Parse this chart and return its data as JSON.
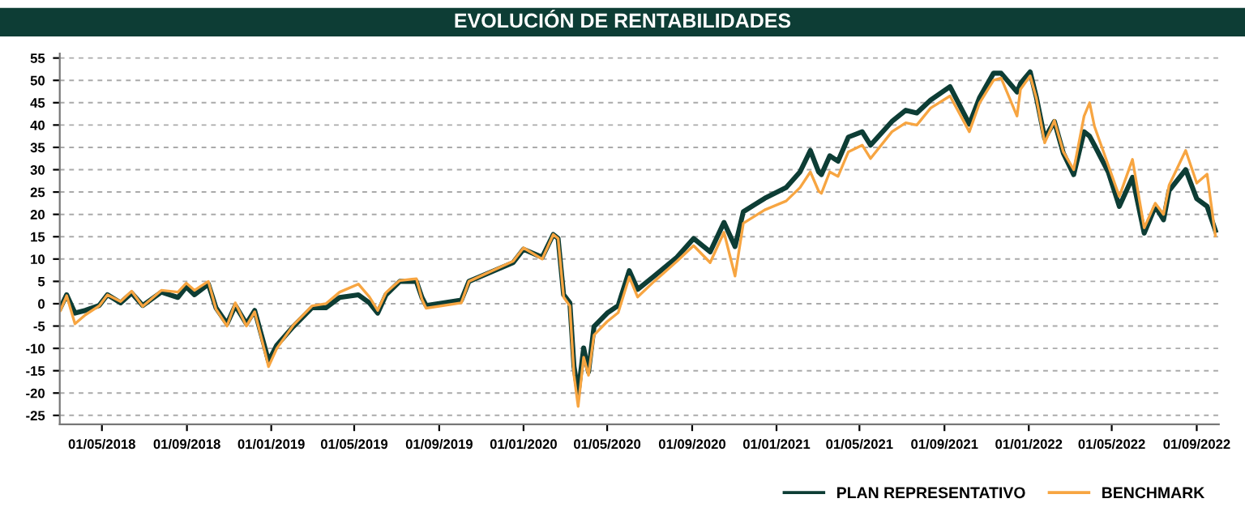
{
  "chart_data": {
    "type": "line",
    "title": "EVOLUCIÓN DE RENTABILIDADES",
    "x": [
      "2018-03-02",
      "2018-03-11",
      "2018-03-23",
      "2018-04-07",
      "2018-04-27",
      "2018-05-09",
      "2018-05-28",
      "2018-06-13",
      "2018-06-29",
      "2018-07-26",
      "2018-08-19",
      "2018-08-31",
      "2018-09-12",
      "2018-10-02",
      "2018-10-13",
      "2018-10-29",
      "2018-11-10",
      "2018-11-26",
      "2018-12-08",
      "2018-12-24",
      "2018-12-28",
      "2019-01-09",
      "2019-02-02",
      "2019-03-01",
      "2019-03-21",
      "2019-04-10",
      "2019-05-07",
      "2019-05-23",
      "2019-06-04",
      "2019-06-16",
      "2019-07-06",
      "2019-07-30",
      "2019-08-07",
      "2019-08-13",
      "2019-10-03",
      "2019-10-14",
      "2019-12-17",
      "2020-01-01",
      "2020-01-28",
      "2020-02-13",
      "2020-02-20",
      "2020-02-28",
      "2020-03-08",
      "2020-03-14",
      "2020-03-20",
      "2020-03-28",
      "2020-04-04",
      "2020-04-12",
      "2020-05-01",
      "2020-05-17",
      "2020-06-02",
      "2020-06-14",
      "2020-07-08",
      "2020-08-10",
      "2020-09-03",
      "2020-09-27",
      "2020-10-17",
      "2020-11-02",
      "2020-11-14",
      "2020-12-15",
      "2021-01-15",
      "2021-02-04",
      "2021-02-19",
      "2021-03-03",
      "2021-03-07",
      "2021-03-19",
      "2021-03-31",
      "2021-04-15",
      "2021-05-05",
      "2021-05-17",
      "2021-06-17",
      "2021-07-07",
      "2021-07-23",
      "2021-08-12",
      "2021-09-09",
      "2021-10-07",
      "2021-10-22",
      "2021-11-11",
      "2021-11-22",
      "2021-12-15",
      "2021-12-20",
      "2022-01-03",
      "2022-01-12",
      "2022-01-24",
      "2022-02-07",
      "2022-02-20",
      "2022-03-07",
      "2022-03-22",
      "2022-03-30",
      "2022-04-06",
      "2022-04-26",
      "2022-05-12",
      "2022-05-31",
      "2022-06-17",
      "2022-07-03",
      "2022-07-15",
      "2022-07-23",
      "2022-08-16",
      "2022-09-01",
      "2022-09-16",
      "2022-09-28"
    ],
    "series": [
      {
        "name": "PLAN REPRESENTATIVO",
        "color": "#0d3d35",
        "values": [
          -0.9,
          2.0,
          -2.1,
          -1.5,
          -0.4,
          2.0,
          0.2,
          2.4,
          -0.4,
          2.6,
          1.4,
          3.8,
          2.0,
          4.4,
          -0.9,
          -4.5,
          -0.4,
          -4.5,
          -1.5,
          -10.5,
          -12.9,
          -9.3,
          -5.1,
          -0.9,
          -0.9,
          1.4,
          2.0,
          0.2,
          -2.1,
          2.0,
          5.0,
          5.0,
          1.4,
          -0.4,
          0.8,
          5.0,
          9.2,
          12.2,
          10.4,
          15.5,
          14.6,
          2.0,
          0.2,
          -14.0,
          -20.0,
          -9.9,
          -15.3,
          -5.1,
          -2.1,
          -0.4,
          7.4,
          3.2,
          6.2,
          10.4,
          14.6,
          11.6,
          18.2,
          12.8,
          20.6,
          23.6,
          26.0,
          29.5,
          34.3,
          29.5,
          28.9,
          33.1,
          31.9,
          37.3,
          38.5,
          35.5,
          40.8,
          43.3,
          42.7,
          45.6,
          48.6,
          40.2,
          46.2,
          51.6,
          51.6,
          47.4,
          49.3,
          51.9,
          46.2,
          37.0,
          40.8,
          33.7,
          28.9,
          38.5,
          37.5,
          35.5,
          29.5,
          21.8,
          28.3,
          15.8,
          21.8,
          18.8,
          25.3,
          30.0,
          23.5,
          21.8,
          16.4
        ]
      },
      {
        "name": "BENCHMARK",
        "color": "#f7a541",
        "values": [
          -1.5,
          1.8,
          -4.5,
          -2.5,
          -0.5,
          2.0,
          0.5,
          2.8,
          -0.6,
          3.0,
          2.6,
          4.6,
          3.0,
          5.0,
          -1.2,
          -5.0,
          0.2,
          -5.0,
          -1.8,
          -11.5,
          -14.1,
          -10.0,
          -4.8,
          -0.5,
          0.0,
          2.6,
          4.4,
          1.5,
          -1.5,
          2.5,
          5.2,
          5.6,
          1.0,
          -1.0,
          0.2,
          5.0,
          9.5,
          12.5,
          10.0,
          15.5,
          14.6,
          1.5,
          -0.5,
          -16.0,
          -23.0,
          -12.0,
          -16.0,
          -7.0,
          -4.0,
          -2.0,
          6.0,
          1.5,
          5.0,
          9.5,
          13.0,
          9.2,
          16.0,
          6.2,
          18.0,
          21.0,
          23.0,
          26.0,
          29.5,
          25.2,
          24.7,
          29.5,
          28.5,
          34.0,
          35.5,
          32.5,
          38.5,
          40.5,
          40.0,
          43.8,
          46.5,
          38.5,
          45.0,
          50.0,
          50.5,
          42.0,
          48.0,
          51.0,
          46.0,
          36.0,
          41.0,
          34.0,
          30.0,
          42.0,
          45.0,
          39.7,
          31.0,
          24.0,
          32.3,
          17.0,
          22.5,
          20.0,
          26.5,
          34.3,
          27.0,
          29.0,
          15.2
        ]
      }
    ],
    "xlim": [
      "2018-03-01",
      "2022-10-03"
    ],
    "xticks": [
      {
        "value": "2018-05-01",
        "label": "01/05/2018"
      },
      {
        "value": "2018-09-01",
        "label": "01/09/2018"
      },
      {
        "value": "2019-01-01",
        "label": "01/01/2019"
      },
      {
        "value": "2019-05-01",
        "label": "01/05/2019"
      },
      {
        "value": "2019-09-01",
        "label": "01/09/2019"
      },
      {
        "value": "2020-01-01",
        "label": "01/01/2020"
      },
      {
        "value": "2020-05-01",
        "label": "01/05/2020"
      },
      {
        "value": "2020-09-01",
        "label": "01/09/2020"
      },
      {
        "value": "2021-01-01",
        "label": "01/01/2021"
      },
      {
        "value": "2021-05-01",
        "label": "01/05/2021"
      },
      {
        "value": "2021-09-01",
        "label": "01/09/2021"
      },
      {
        "value": "2022-01-01",
        "label": "01/01/2022"
      },
      {
        "value": "2022-05-01",
        "label": "01/05/2022"
      },
      {
        "value": "2022-09-01",
        "label": "01/09/2022"
      }
    ],
    "ylim": [
      -27,
      56
    ],
    "yticks": [
      -25,
      -20,
      -15,
      -10,
      -5,
      0,
      5,
      10,
      15,
      20,
      25,
      30,
      35,
      40,
      45,
      50,
      55
    ],
    "grid": "y",
    "legend": "bottom right",
    "marker": "none",
    "line_style": "solid"
  }
}
